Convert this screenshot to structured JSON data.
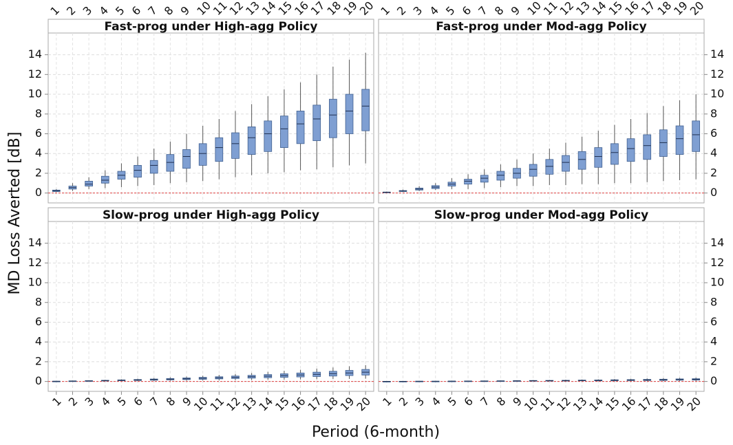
{
  "chart_data": {
    "type": "box",
    "x_label": "Period (6-month)",
    "y_label": "MD Loss Averted [dB]",
    "categories": [
      "1",
      "2",
      "3",
      "4",
      "5",
      "6",
      "7",
      "8",
      "9",
      "10",
      "11",
      "12",
      "13",
      "14",
      "15",
      "16",
      "17",
      "18",
      "19",
      "20"
    ],
    "ylim": [
      -1,
      16.2
    ],
    "yticks": [
      0,
      2,
      4,
      6,
      8,
      10,
      12,
      14
    ],
    "grid": true,
    "reference_line": {
      "value": 0,
      "color": "#e04040"
    },
    "color": "#7f9fd2",
    "panels": [
      {
        "title": "Fast-prog under High-agg Policy",
        "whislo": [
          0.1,
          0.2,
          0.4,
          0.5,
          0.6,
          0.7,
          0.8,
          1.0,
          1.1,
          1.2,
          1.4,
          1.6,
          1.8,
          2.0,
          2.1,
          2.3,
          2.4,
          2.6,
          2.8,
          3.0
        ],
        "q1": [
          0.15,
          0.4,
          0.7,
          1.0,
          1.4,
          1.6,
          2.0,
          2.2,
          2.5,
          2.8,
          3.2,
          3.5,
          3.9,
          4.2,
          4.6,
          5.0,
          5.3,
          5.6,
          6.0,
          6.3
        ],
        "med": [
          0.22,
          0.55,
          0.9,
          1.3,
          1.8,
          2.3,
          2.8,
          3.1,
          3.7,
          4.0,
          4.6,
          5.0,
          5.6,
          6.0,
          6.5,
          7.0,
          7.5,
          7.9,
          8.3,
          8.8
        ],
        "q3": [
          0.3,
          0.7,
          1.2,
          1.7,
          2.2,
          2.8,
          3.3,
          3.9,
          4.4,
          5.0,
          5.6,
          6.1,
          6.7,
          7.3,
          7.8,
          8.3,
          8.9,
          9.5,
          10.0,
          10.5
        ],
        "whishi": [
          0.4,
          1.0,
          1.6,
          2.3,
          3.0,
          3.7,
          4.5,
          5.2,
          6.0,
          6.8,
          7.5,
          8.3,
          9.0,
          9.8,
          10.5,
          11.2,
          12.0,
          12.8,
          13.5,
          14.2
        ]
      },
      {
        "title": "Fast-prog under Mod-agg Policy",
        "whislo": [
          0.03,
          0.1,
          0.2,
          0.3,
          0.4,
          0.4,
          0.5,
          0.6,
          0.7,
          0.7,
          0.8,
          0.8,
          0.9,
          0.9,
          1.0,
          1.0,
          1.1,
          1.2,
          1.3,
          1.4
        ],
        "q1": [
          0.05,
          0.15,
          0.3,
          0.45,
          0.7,
          0.9,
          1.1,
          1.3,
          1.5,
          1.7,
          1.9,
          2.2,
          2.4,
          2.6,
          2.9,
          3.2,
          3.4,
          3.7,
          3.9,
          4.2
        ],
        "med": [
          0.08,
          0.2,
          0.4,
          0.6,
          0.9,
          1.2,
          1.5,
          1.8,
          2.0,
          2.4,
          2.7,
          3.1,
          3.4,
          3.7,
          4.1,
          4.5,
          4.8,
          5.1,
          5.5,
          5.9
        ],
        "q3": [
          0.1,
          0.25,
          0.5,
          0.75,
          1.1,
          1.4,
          1.8,
          2.2,
          2.5,
          2.9,
          3.4,
          3.8,
          4.2,
          4.6,
          5.0,
          5.5,
          5.9,
          6.4,
          6.8,
          7.3
        ],
        "whishi": [
          0.15,
          0.35,
          0.7,
          1.0,
          1.5,
          1.9,
          2.4,
          2.9,
          3.4,
          4.0,
          4.5,
          5.1,
          5.7,
          6.3,
          6.9,
          7.5,
          8.1,
          8.8,
          9.4,
          10.0
        ]
      },
      {
        "title": "Slow-prog under High-agg Policy",
        "whislo": [
          0,
          0.01,
          0.02,
          0.03,
          0.04,
          0.05,
          0.06,
          0.07,
          0.08,
          0.1,
          0.11,
          0.13,
          0.14,
          0.16,
          0.18,
          0.2,
          0.22,
          0.24,
          0.26,
          0.28
        ],
        "q1": [
          0.01,
          0.03,
          0.04,
          0.06,
          0.08,
          0.1,
          0.13,
          0.16,
          0.19,
          0.22,
          0.26,
          0.3,
          0.34,
          0.38,
          0.42,
          0.46,
          0.5,
          0.55,
          0.6,
          0.65
        ],
        "med": [
          0.02,
          0.04,
          0.06,
          0.09,
          0.12,
          0.15,
          0.19,
          0.23,
          0.27,
          0.32,
          0.37,
          0.42,
          0.48,
          0.54,
          0.6,
          0.66,
          0.72,
          0.79,
          0.86,
          0.94
        ],
        "q3": [
          0.03,
          0.06,
          0.08,
          0.12,
          0.16,
          0.2,
          0.25,
          0.3,
          0.36,
          0.42,
          0.48,
          0.55,
          0.62,
          0.7,
          0.78,
          0.86,
          0.94,
          1.03,
          1.12,
          1.22
        ],
        "whishi": [
          0.05,
          0.09,
          0.12,
          0.17,
          0.22,
          0.28,
          0.35,
          0.42,
          0.5,
          0.58,
          0.67,
          0.76,
          0.86,
          0.97,
          1.08,
          1.19,
          1.3,
          1.42,
          1.54,
          1.66
        ]
      },
      {
        "title": "Slow-prog under Mod-agg Policy",
        "whislo": [
          0,
          0,
          0,
          0,
          0,
          0.01,
          0.01,
          0.01,
          0.01,
          0.01,
          0.02,
          0.02,
          0.02,
          0.02,
          0.03,
          0.03,
          0.03,
          0.04,
          0.04,
          0.04
        ],
        "q1": [
          0,
          0.01,
          0.01,
          0.01,
          0.02,
          0.02,
          0.03,
          0.03,
          0.04,
          0.05,
          0.05,
          0.06,
          0.07,
          0.07,
          0.08,
          0.09,
          0.1,
          0.11,
          0.13,
          0.14
        ],
        "med": [
          0.01,
          0.01,
          0.02,
          0.02,
          0.03,
          0.04,
          0.04,
          0.05,
          0.06,
          0.07,
          0.08,
          0.09,
          0.1,
          0.11,
          0.12,
          0.14,
          0.15,
          0.17,
          0.19,
          0.21
        ],
        "q3": [
          0.01,
          0.02,
          0.03,
          0.03,
          0.04,
          0.05,
          0.06,
          0.07,
          0.08,
          0.1,
          0.11,
          0.12,
          0.14,
          0.15,
          0.17,
          0.19,
          0.21,
          0.23,
          0.26,
          0.28
        ],
        "whishi": [
          0.02,
          0.03,
          0.04,
          0.05,
          0.06,
          0.07,
          0.09,
          0.1,
          0.12,
          0.14,
          0.16,
          0.18,
          0.2,
          0.22,
          0.25,
          0.28,
          0.31,
          0.34,
          0.37,
          0.4
        ]
      }
    ]
  }
}
